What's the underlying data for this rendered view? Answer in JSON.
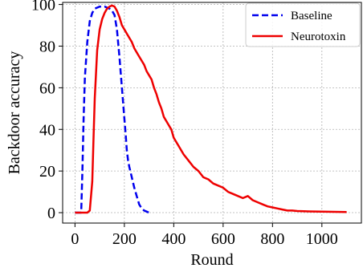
{
  "chart_data": {
    "type": "line",
    "xlabel": "Round",
    "ylabel": "Backdoor accuracy",
    "xlim": [
      -50,
      1160
    ],
    "ylim": [
      -5,
      101
    ],
    "xticks": [
      0,
      200,
      400,
      600,
      800,
      1000
    ],
    "yticks": [
      0,
      20,
      40,
      60,
      80,
      100
    ],
    "grid": true,
    "legend_position": "top-right",
    "series": [
      {
        "name": "Baseline",
        "color": "#0000ee",
        "style": "dashed",
        "x": [
          0,
          25,
          30,
          35,
          40,
          50,
          60,
          70,
          80,
          90,
          100,
          110,
          120,
          130,
          140,
          150,
          160,
          170,
          180,
          190,
          200,
          205,
          210,
          215,
          220,
          230,
          240,
          250,
          260,
          270,
          280,
          290,
          300
        ],
        "y": [
          0,
          0,
          20,
          45,
          65,
          82,
          92,
          96,
          98,
          98.5,
          99,
          99,
          99,
          98.5,
          98,
          97,
          95,
          88,
          75,
          60,
          45,
          38,
          30,
          25,
          22,
          17,
          12,
          8,
          4,
          2,
          1,
          0.5,
          0
        ]
      },
      {
        "name": "Neurotoxin",
        "color": "#ee0000",
        "style": "solid",
        "x": [
          0,
          50,
          60,
          70,
          75,
          80,
          90,
          100,
          110,
          120,
          130,
          140,
          150,
          160,
          170,
          180,
          190,
          200,
          210,
          220,
          230,
          240,
          250,
          260,
          270,
          280,
          290,
          300,
          310,
          320,
          330,
          340,
          350,
          360,
          370,
          380,
          390,
          400,
          420,
          440,
          460,
          480,
          500,
          520,
          540,
          560,
          580,
          600,
          620,
          640,
          660,
          680,
          700,
          720,
          740,
          760,
          780,
          800,
          820,
          840,
          860,
          880,
          900,
          950,
          1000,
          1050,
          1100
        ],
        "y": [
          0,
          0,
          1,
          15,
          35,
          55,
          78,
          88,
          93,
          96,
          98,
          99,
          99.5,
          99,
          97,
          94,
          90,
          88,
          86,
          84,
          82,
          79,
          77,
          75,
          73,
          71,
          68,
          66,
          64,
          60,
          57,
          53,
          50,
          46,
          44,
          42,
          40,
          36,
          32,
          28,
          25,
          22,
          20,
          17,
          16,
          14,
          13,
          12,
          10,
          9,
          8,
          7,
          8,
          6,
          5,
          4,
          3,
          2.5,
          2,
          1.5,
          1,
          1,
          0.8,
          0.6,
          0.5,
          0.4,
          0.3
        ]
      }
    ]
  }
}
